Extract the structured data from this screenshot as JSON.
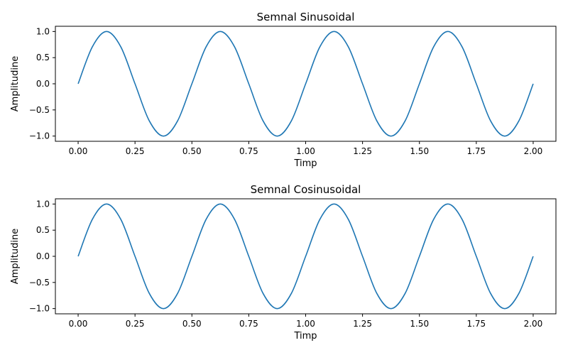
{
  "chart_data": [
    {
      "type": "line",
      "title": "Semnal Sinusoidal",
      "xlabel": "Timp",
      "ylabel": "Amplitudine",
      "xlim": [
        -0.1,
        2.1
      ],
      "ylim": [
        -1.1,
        1.1
      ],
      "xticks": [
        0.0,
        0.25,
        0.5,
        0.75,
        1.0,
        1.25,
        1.5,
        1.75,
        2.0
      ],
      "xtick_labels": [
        "0.00",
        "0.25",
        "0.50",
        "0.75",
        "1.00",
        "1.25",
        "1.50",
        "1.75",
        "2.00"
      ],
      "yticks": [
        -1.0,
        -0.5,
        0.0,
        0.5,
        1.0
      ],
      "ytick_labels": [
        "−1.0",
        "−0.5",
        "0.0",
        "0.5",
        "1.0"
      ],
      "grid": false,
      "series": [
        {
          "color": "#1f77b4",
          "x": [
            0.0,
            0.0625,
            0.125,
            0.1875,
            0.25,
            0.3125,
            0.375,
            0.4375,
            0.5,
            0.5625,
            0.625,
            0.6875,
            0.75,
            0.8125,
            0.875,
            0.9375,
            1.0,
            1.0625,
            1.125,
            1.1875,
            1.25,
            1.3125,
            1.375,
            1.4375,
            1.5,
            1.5625,
            1.625,
            1.6875,
            1.75,
            1.8125,
            1.875,
            1.9375,
            2.0
          ],
          "y": [
            0.0,
            0.707,
            1.0,
            0.707,
            0.0,
            -0.707,
            -1.0,
            -0.707,
            0.0,
            0.707,
            1.0,
            0.707,
            0.0,
            -0.707,
            -1.0,
            -0.707,
            0.0,
            0.707,
            1.0,
            0.707,
            0.0,
            -0.707,
            -1.0,
            -0.707,
            0.0,
            0.707,
            1.0,
            0.707,
            0.0,
            -0.707,
            -1.0,
            -0.707,
            0.0
          ]
        }
      ]
    },
    {
      "type": "line",
      "title": "Semnal Cosinusoidal",
      "xlabel": "Timp",
      "ylabel": "Amplitudine",
      "xlim": [
        -0.1,
        2.1
      ],
      "ylim": [
        -1.1,
        1.1
      ],
      "xticks": [
        0.0,
        0.25,
        0.5,
        0.75,
        1.0,
        1.25,
        1.5,
        1.75,
        2.0
      ],
      "xtick_labels": [
        "0.00",
        "0.25",
        "0.50",
        "0.75",
        "1.00",
        "1.25",
        "1.50",
        "1.75",
        "2.00"
      ],
      "yticks": [
        -1.0,
        -0.5,
        0.0,
        0.5,
        1.0
      ],
      "ytick_labels": [
        "−1.0",
        "−0.5",
        "0.0",
        "0.5",
        "1.0"
      ],
      "grid": false,
      "series": [
        {
          "color": "#1f77b4",
          "x": [
            0.0,
            0.0625,
            0.125,
            0.1875,
            0.25,
            0.3125,
            0.375,
            0.4375,
            0.5,
            0.5625,
            0.625,
            0.6875,
            0.75,
            0.8125,
            0.875,
            0.9375,
            1.0,
            1.0625,
            1.125,
            1.1875,
            1.25,
            1.3125,
            1.375,
            1.4375,
            1.5,
            1.5625,
            1.625,
            1.6875,
            1.75,
            1.8125,
            1.875,
            1.9375,
            2.0
          ],
          "y": [
            0.0,
            0.707,
            1.0,
            0.707,
            0.0,
            -0.707,
            -1.0,
            -0.707,
            0.0,
            0.707,
            1.0,
            0.707,
            0.0,
            -0.707,
            -1.0,
            -0.707,
            0.0,
            0.707,
            1.0,
            0.707,
            0.0,
            -0.707,
            -1.0,
            -0.707,
            0.0,
            0.707,
            1.0,
            0.707,
            0.0,
            -0.707,
            -1.0,
            -0.707,
            0.0
          ]
        }
      ]
    }
  ]
}
